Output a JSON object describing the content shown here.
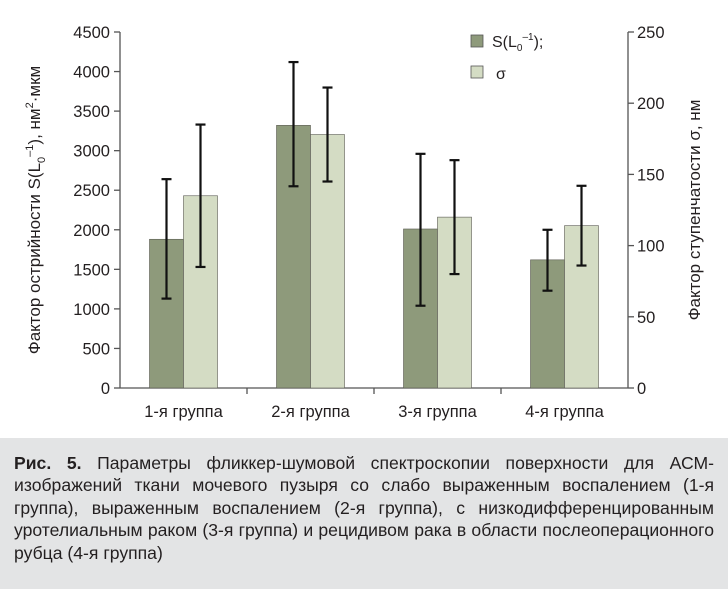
{
  "chart_data": {
    "type": "bar",
    "categories": [
      "1-я группа",
      "2-я группа",
      "3-я группа",
      "4-я группа"
    ],
    "left_axis": {
      "label_main": "Фактор острийности S(L",
      "label_sub": "0",
      "label_sup": "–1",
      "label_tail": "), нм",
      "label_sup2": "2",
      "label_end": "·мкм",
      "ylim": [
        0,
        4500
      ],
      "ticks": [
        "0",
        "500",
        "1000",
        "1500",
        "2000",
        "2500",
        "3000",
        "3500",
        "4000",
        "4500"
      ]
    },
    "right_axis": {
      "label": "Фактор ступенчатости σ, нм",
      "ylim": [
        0,
        250
      ],
      "ticks": [
        "0",
        "50",
        "100",
        "150",
        "200",
        "250"
      ]
    },
    "series": [
      {
        "name": "S(L0–1)",
        "legend_main": "S(L",
        "legend_sub": "0",
        "legend_sup": "–1",
        "legend_tail": ");",
        "axis": "left",
        "color": "#8e9a7b",
        "values": [
          1880,
          3320,
          2010,
          1620
        ],
        "err_low": [
          1130,
          2550,
          1040,
          1230
        ],
        "err_high": [
          2640,
          4120,
          2960,
          2000
        ]
      },
      {
        "name": "σ",
        "legend_main": "σ",
        "axis": "right",
        "color": "#d4dcc4",
        "values": [
          135,
          178,
          120,
          114
        ],
        "err_low": [
          85,
          145,
          80,
          86
        ],
        "err_high": [
          185,
          211,
          160,
          142
        ]
      }
    ],
    "grid": false,
    "legend_position": "top-right"
  },
  "caption": {
    "label": "Рис. 5.",
    "text": "Параметры фликкер-шумовой спектроскопии поверхности для АСМ-изображений ткани мочевого пузыря со слабо выраженным воспалением (1-я группа), выраженным воспалением (2-я группа), с низкодифференцированным уротелиальным раком (3-я группа) и рецидивом рака в области послеоперационного рубца (4-я группа)"
  }
}
